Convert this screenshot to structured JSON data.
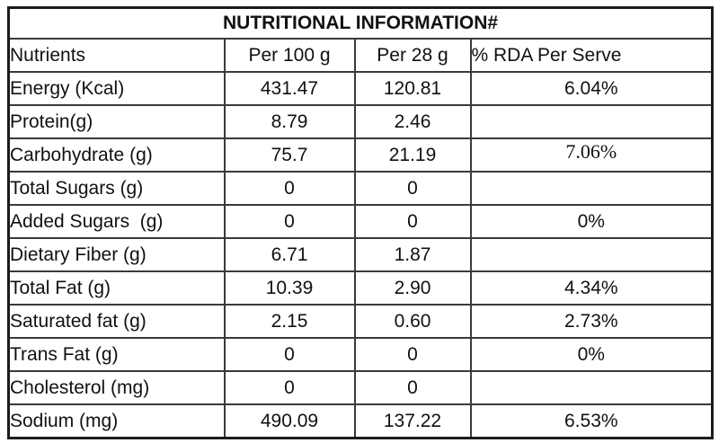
{
  "table": {
    "title": "NUTRITIONAL INFORMATION#",
    "headers": {
      "nutrients": "Nutrients",
      "per100": "Per 100 g",
      "per28": "Per 28 g",
      "rda": "% RDA Per Serve"
    },
    "rows": [
      {
        "label": "Energy (Kcal)",
        "per100": "431.47",
        "per28": "120.81",
        "rda": "6.04%",
        "rda_serif": false
      },
      {
        "label": "Protein(g)",
        "per100": "8.79",
        "per28": "2.46",
        "rda": "",
        "rda_serif": false
      },
      {
        "label": "Carbohydrate (g)",
        "per100": "75.7",
        "per28": "21.19",
        "rda": "7.06%",
        "rda_serif": true
      },
      {
        "label": "Total Sugars (g)",
        "per100": "0",
        "per28": "0",
        "rda": "",
        "rda_serif": false
      },
      {
        "label": "Added Sugars  (g)",
        "per100": "0",
        "per28": "0",
        "rda": "0%",
        "rda_serif": false
      },
      {
        "label": "Dietary Fiber (g)",
        "per100": "6.71",
        "per28": "1.87",
        "rda": "",
        "rda_serif": false
      },
      {
        "label": "Total Fat (g)",
        "per100": "10.39",
        "per28": "2.90",
        "rda": "4.34%",
        "rda_serif": false
      },
      {
        "label": "Saturated fat (g)",
        "per100": "2.15",
        "per28": "0.60",
        "rda": "2.73%",
        "rda_serif": false
      },
      {
        "label": "Trans Fat (g)",
        "per100": "0",
        "per28": "0",
        "rda": "0%",
        "rda_serif": false
      },
      {
        "label": "Cholesterol (mg)",
        "per100": "0",
        "per28": "0",
        "rda": "",
        "rda_serif": false
      },
      {
        "label": "Sodium (mg)",
        "per100": "490.09",
        "per28": "137.22",
        "rda": "6.53%",
        "rda_serif": false
      }
    ]
  }
}
